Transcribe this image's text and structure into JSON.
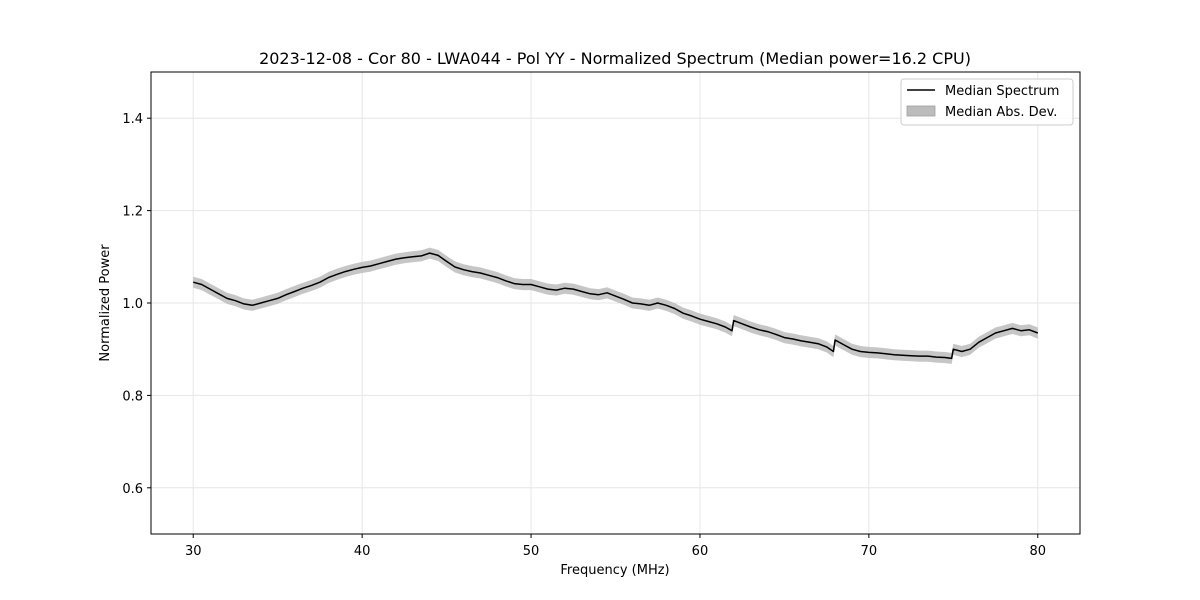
{
  "chart_data": {
    "type": "line",
    "title": "2023-12-08 - Cor 80 - LWA044 - Pol YY - Normalized Spectrum (Median power=16.2 CPU)",
    "xlabel": "Frequency (MHz)",
    "ylabel": "Normalized Power",
    "xlim": [
      27.5,
      82.5
    ],
    "ylim": [
      0.5,
      1.5
    ],
    "xticks": [
      30,
      40,
      50,
      60,
      70,
      80
    ],
    "yticks": [
      0.6,
      0.8,
      1.0,
      1.2,
      1.4
    ],
    "xtick_labels": [
      "30",
      "40",
      "50",
      "60",
      "70",
      "80"
    ],
    "ytick_labels": [
      "0.6",
      "0.8",
      "1.0",
      "1.2",
      "1.4"
    ],
    "grid": true,
    "legend_position": "top-right",
    "series": [
      {
        "name": "Median Spectrum",
        "kind": "line",
        "color": "#000000",
        "x": [
          30.0,
          30.5,
          31.0,
          31.5,
          32.0,
          32.5,
          33.0,
          33.5,
          34.0,
          34.5,
          35.0,
          35.5,
          36.0,
          36.5,
          37.0,
          37.5,
          38.0,
          38.5,
          39.0,
          39.5,
          40.0,
          40.5,
          41.0,
          41.5,
          42.0,
          42.5,
          43.0,
          43.5,
          44.0,
          44.5,
          45.0,
          45.5,
          46.0,
          46.5,
          47.0,
          47.5,
          48.0,
          48.5,
          49.0,
          49.5,
          50.0,
          50.5,
          51.0,
          51.5,
          52.0,
          52.5,
          53.0,
          53.5,
          54.0,
          54.5,
          55.0,
          55.5,
          56.0,
          56.5,
          57.0,
          57.5,
          58.0,
          58.5,
          59.0,
          59.5,
          60.0,
          60.5,
          61.0,
          61.5,
          61.9,
          62.0,
          62.5,
          63.0,
          63.5,
          64.0,
          64.5,
          65.0,
          65.5,
          66.0,
          66.5,
          67.0,
          67.5,
          67.9,
          68.0,
          68.5,
          69.0,
          69.5,
          70.0,
          70.5,
          71.0,
          71.5,
          72.0,
          72.5,
          73.0,
          73.5,
          74.0,
          74.5,
          74.9,
          75.0,
          75.5,
          76.0,
          76.5,
          77.0,
          77.5,
          78.0,
          78.5,
          79.0,
          79.5,
          80.0
        ],
        "values": [
          1.045,
          1.04,
          1.03,
          1.02,
          1.01,
          1.005,
          0.998,
          0.995,
          1.0,
          1.005,
          1.01,
          1.018,
          1.025,
          1.032,
          1.038,
          1.045,
          1.055,
          1.062,
          1.068,
          1.073,
          1.077,
          1.08,
          1.085,
          1.09,
          1.095,
          1.098,
          1.1,
          1.102,
          1.108,
          1.103,
          1.09,
          1.078,
          1.072,
          1.068,
          1.065,
          1.06,
          1.055,
          1.048,
          1.042,
          1.04,
          1.04,
          1.035,
          1.03,
          1.028,
          1.032,
          1.03,
          1.025,
          1.02,
          1.018,
          1.022,
          1.015,
          1.008,
          1.0,
          0.998,
          0.995,
          1.0,
          0.995,
          0.988,
          0.978,
          0.972,
          0.965,
          0.96,
          0.955,
          0.948,
          0.94,
          0.962,
          0.955,
          0.948,
          0.942,
          0.938,
          0.932,
          0.925,
          0.922,
          0.918,
          0.915,
          0.912,
          0.905,
          0.895,
          0.92,
          0.91,
          0.9,
          0.895,
          0.893,
          0.892,
          0.89,
          0.888,
          0.887,
          0.886,
          0.885,
          0.885,
          0.883,
          0.882,
          0.88,
          0.9,
          0.895,
          0.9,
          0.915,
          0.925,
          0.935,
          0.94,
          0.945,
          0.94,
          0.942,
          0.935
        ]
      },
      {
        "name": "Median Abs. Dev.",
        "kind": "band",
        "color": "#bcbcbc",
        "half_width": 0.012
      }
    ]
  }
}
